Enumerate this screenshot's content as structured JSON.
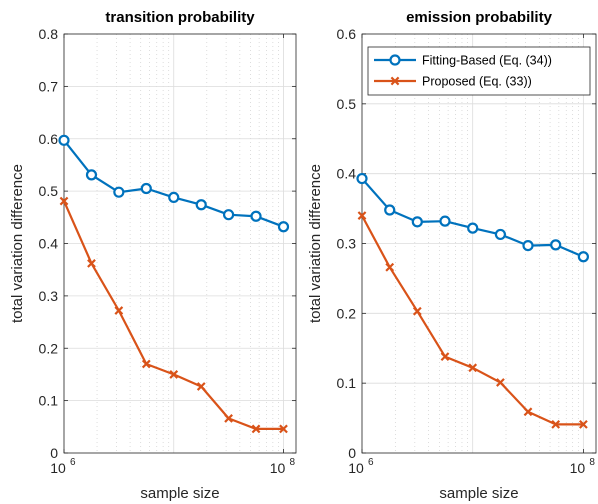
{
  "chart_data": [
    {
      "type": "line",
      "title": "transition probability",
      "xlabel": "sample size",
      "ylabel": "total variation difference",
      "xscale": "log",
      "xlim": [
        1000000,
        130000000
      ],
      "ylim": [
        0,
        0.8
      ],
      "yticks": [
        "0",
        "0.1",
        "0.2",
        "0.3",
        "0.4",
        "0.5",
        "0.6",
        "0.7",
        "0.8"
      ],
      "xticks": [
        {
          "base": "10",
          "exp": "6"
        },
        {
          "base": "10",
          "exp": "8"
        }
      ],
      "grid": true,
      "legend": "none",
      "x": [
        1000000,
        1780000,
        3160000,
        5620000,
        10000000,
        17800000,
        31600000,
        56200000,
        100000000
      ],
      "series": [
        {
          "name": "Fitting-Based (Eq. (34))",
          "color": "#0072BD",
          "marker": "circle",
          "values": [
            0.597,
            0.531,
            0.498,
            0.505,
            0.488,
            0.474,
            0.455,
            0.452,
            0.432
          ]
        },
        {
          "name": "Proposed (Eq. (33))",
          "color": "#D95319",
          "marker": "x",
          "values": [
            0.481,
            0.362,
            0.272,
            0.17,
            0.15,
            0.127,
            0.066,
            0.046,
            0.046
          ]
        }
      ]
    },
    {
      "type": "line",
      "title": "emission probability",
      "xlabel": "sample size",
      "ylabel": "total variation difference",
      "xscale": "log",
      "xlim": [
        1000000,
        130000000
      ],
      "ylim": [
        0,
        0.6
      ],
      "yticks": [
        "0",
        "0.1",
        "0.2",
        "0.3",
        "0.4",
        "0.5",
        "0.6"
      ],
      "xticks": [
        {
          "base": "10",
          "exp": "6"
        },
        {
          "base": "10",
          "exp": "8"
        }
      ],
      "grid": true,
      "legend": "top-right",
      "x": [
        1000000,
        1780000,
        3160000,
        5620000,
        10000000,
        17800000,
        31600000,
        56200000,
        100000000
      ],
      "series": [
        {
          "name": "Fitting-Based (Eq. (34))",
          "color": "#0072BD",
          "marker": "circle",
          "values": [
            0.393,
            0.348,
            0.331,
            0.332,
            0.322,
            0.313,
            0.297,
            0.298,
            0.281
          ]
        },
        {
          "name": "Proposed (Eq. (33))",
          "color": "#D95319",
          "marker": "x",
          "values": [
            0.34,
            0.266,
            0.203,
            0.138,
            0.122,
            0.101,
            0.059,
            0.041,
            0.041
          ]
        }
      ]
    }
  ]
}
